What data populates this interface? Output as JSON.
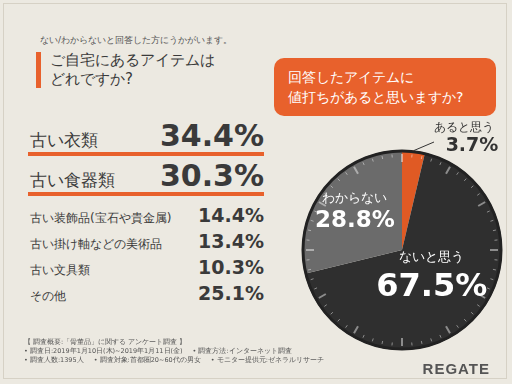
{
  "intro": "ない/わからないと回答した方にうかがいます。",
  "question": [
    "ご自宅にあるアイテムは",
    "どれですか?"
  ],
  "items": [
    {
      "label": "古い衣類",
      "value": "34.4%",
      "color": "#e8612c"
    },
    {
      "label": "古い食器類",
      "value": "30.3%",
      "color": "#e8612c"
    },
    {
      "label": "古い装飾品(宝石や貴金属)",
      "value": "14.4%"
    },
    {
      "label": "古い掛け軸などの美術品",
      "value": "13.4%"
    },
    {
      "label": "古い文具類",
      "value": "10.3%"
    },
    {
      "label": "その他",
      "value": "25.1%"
    }
  ],
  "chart_data": {
    "type": "pie",
    "title": [
      "回答したアイテムに",
      "値打ちがあると思いますか?"
    ],
    "categories": [
      "あると思う",
      "ないと思う",
      "わからない"
    ],
    "values": [
      3.7,
      67.5,
      28.8
    ],
    "value_labels": [
      "3.7%",
      "67.5%",
      "28.8%"
    ],
    "colors": [
      "#e05a24",
      "#2f2f2f",
      "#6b6b6b"
    ],
    "data_labels": true
  },
  "footer": {
    "heading": "【 調査概要:「骨董品」に関する アンケート調査 】",
    "notes": [
      "• 調査日:2019年1月10日(木)~2019年1月11日(金)",
      "• 調査方法:インターネット調査",
      "• 調査人数:1395人",
      "• 調査対象:首都圏20~60代の男女",
      "• モニター提供元:ゼネラルリサーチ"
    ]
  },
  "logo": "REGATE"
}
